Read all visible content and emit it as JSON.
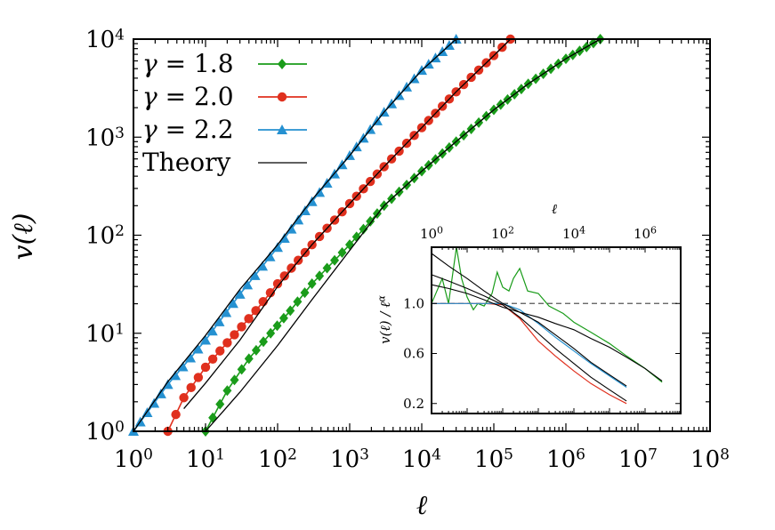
{
  "chart_data": [
    {
      "type": "line",
      "x_scale": "log",
      "y_scale": "log",
      "xlabel": "ℓ",
      "ylabel": "v(ℓ)",
      "xlim": [
        1,
        100000000
      ],
      "ylim": [
        1,
        10000
      ],
      "x_ticks": [
        {
          "base": "10",
          "exp": "0"
        },
        {
          "base": "10",
          "exp": "1"
        },
        {
          "base": "10",
          "exp": "2"
        },
        {
          "base": "10",
          "exp": "3"
        },
        {
          "base": "10",
          "exp": "4"
        },
        {
          "base": "10",
          "exp": "5"
        },
        {
          "base": "10",
          "exp": "6"
        },
        {
          "base": "10",
          "exp": "7"
        },
        {
          "base": "10",
          "exp": "8"
        }
      ],
      "y_ticks": [
        {
          "base": "10",
          "exp": "0"
        },
        {
          "base": "10",
          "exp": "1"
        },
        {
          "base": "10",
          "exp": "2"
        },
        {
          "base": "10",
          "exp": "3"
        },
        {
          "base": "10",
          "exp": "4"
        }
      ],
      "legend_position": "top-left",
      "series": [
        {
          "name": "γ = 1.8",
          "legend_symbol": "γ",
          "legend_rest": " = 1.8",
          "color": "#1a9c1a",
          "marker": "diamond",
          "x": [
            10,
            20,
            40,
            80,
            150,
            300,
            1000,
            3000,
            10000,
            30000,
            100000,
            300000,
            1000000,
            3000000
          ],
          "y": [
            1,
            2.6,
            5.5,
            10,
            17,
            32,
            80,
            200,
            450,
            900,
            1900,
            3500,
            6300,
            10000
          ]
        },
        {
          "name": "γ = 2.0",
          "legend_symbol": "γ",
          "legend_rest": " = 2.0",
          "color": "#e0301e",
          "marker": "circle",
          "x": [
            3,
            5,
            10,
            20,
            50,
            100,
            300,
            1000,
            3000,
            10000,
            30000,
            100000,
            170000
          ],
          "y": [
            1,
            2.2,
            4.5,
            8,
            17,
            32,
            80,
            210,
            500,
            1250,
            2900,
            6800,
            10000
          ]
        },
        {
          "name": "γ = 2.2",
          "legend_symbol": "γ",
          "legend_rest": " = 2.2",
          "color": "#2591d1",
          "marker": "triangle",
          "x": [
            1,
            3,
            10,
            30,
            100,
            300,
            1000,
            3000,
            10000,
            30000
          ],
          "y": [
            1,
            3,
            8.5,
            25,
            75,
            220,
            650,
            1800,
            4800,
            10000
          ]
        },
        {
          "name": "Theory",
          "legend_symbol": "",
          "legend_rest": "Theory",
          "color": "#000000",
          "marker": "none",
          "curves": [
            {
              "x": [
                1,
                3,
                10,
                30,
                100,
                300,
                1000,
                3000,
                10000,
                30000
              ],
              "y": [
                1,
                3.2,
                9.5,
                28,
                80,
                230,
                650,
                1800,
                4800,
                10000
              ]
            },
            {
              "x": [
                5,
                10,
                30,
                100,
                300,
                1000,
                3000,
                10000,
                30000,
                100000,
                170000
              ],
              "y": [
                1.7,
                3.1,
                8.5,
                30,
                80,
                210,
                500,
                1250,
                2900,
                6800,
                10000
              ]
            },
            {
              "x": [
                10,
                30,
                100,
                300,
                1000,
                3000,
                10000,
                30000,
                100000,
                300000,
                1000000,
                3000000
              ],
              "y": [
                1,
                2.5,
                7.5,
                22,
                70,
                200,
                450,
                900,
                1900,
                3500,
                6300,
                10000
              ]
            }
          ]
        }
      ]
    },
    {
      "type": "line",
      "x_scale": "log",
      "xlabel": "ℓ",
      "ylabel": "v(ℓ) / ℓ^α",
      "ylabel_main": "v(ℓ) / ℓ",
      "ylabel_sup": "α",
      "xlim": [
        1,
        10000000
      ],
      "ylim": [
        0.12,
        1.45
      ],
      "x_ticks": [
        {
          "base": "10",
          "exp": "0",
          "value": 1
        },
        {
          "base": "10",
          "exp": "2",
          "value": 100
        },
        {
          "base": "10",
          "exp": "4",
          "value": 10000
        },
        {
          "base": "10",
          "exp": "6",
          "value": 1000000
        }
      ],
      "y_ticks": [
        {
          "label": "0.2",
          "value": 0.2
        },
        {
          "label": "0.6",
          "value": 0.6
        },
        {
          "label": "1.0",
          "value": 1.0
        }
      ],
      "reference_line": {
        "y": 1.0,
        "style": "dashed"
      },
      "series": [
        {
          "name": "γ = 1.8",
          "color": "#1a9c1a",
          "x": [
            1,
            2,
            3,
            5,
            7,
            10,
            15,
            20,
            30,
            50,
            70,
            100,
            150,
            200,
            300,
            500,
            1000,
            2000,
            5000,
            10000,
            30000,
            100000,
            300000,
            1000000,
            3000000
          ],
          "y": [
            1.0,
            1.2,
            1.0,
            1.45,
            1.2,
            1.05,
            0.95,
            1.0,
            0.98,
            1.08,
            1.25,
            1.13,
            1.1,
            1.2,
            1.28,
            1.1,
            1.08,
            0.98,
            0.92,
            0.85,
            0.77,
            0.68,
            0.58,
            0.48,
            0.37
          ]
        },
        {
          "name": "γ = 2.0",
          "color": "#e0301e",
          "x": [
            1,
            3,
            10,
            30,
            100,
            300,
            1000,
            3000,
            10000,
            30000,
            100000,
            300000
          ],
          "y": [
            1.0,
            1.0,
            1.0,
            1.0,
            0.99,
            0.88,
            0.7,
            0.58,
            0.46,
            0.36,
            0.27,
            0.2
          ]
        },
        {
          "name": "γ = 2.2",
          "color": "#2591d1",
          "x": [
            1,
            3,
            10,
            30,
            100,
            300,
            1000,
            3000,
            10000,
            30000,
            100000,
            300000
          ],
          "y": [
            1.0,
            1.0,
            1.0,
            1.0,
            1.0,
            0.95,
            0.84,
            0.73,
            0.62,
            0.52,
            0.42,
            0.33
          ]
        },
        {
          "name": "Theory",
          "color": "#000000",
          "curves": [
            {
              "x": [
                1,
                3,
                10,
                30,
                100,
                300,
                1000,
                3000,
                10000,
                30000,
                100000,
                300000,
                1000000,
                3000000
              ],
              "y": [
                1.15,
                1.12,
                1.08,
                1.03,
                0.97,
                0.93,
                0.89,
                0.84,
                0.79,
                0.72,
                0.65,
                0.57,
                0.48,
                0.38
              ]
            },
            {
              "x": [
                1,
                3,
                10,
                30,
                100,
                300,
                1000,
                3000,
                10000,
                30000,
                100000,
                300000
              ],
              "y": [
                1.23,
                1.18,
                1.12,
                1.06,
                0.99,
                0.89,
                0.76,
                0.64,
                0.52,
                0.41,
                0.31,
                0.22
              ]
            },
            {
              "x": [
                1,
                3,
                10,
                30,
                100,
                300,
                1000,
                3000,
                10000,
                30000,
                100000,
                300000
              ],
              "y": [
                1.4,
                1.3,
                1.2,
                1.1,
                1.0,
                0.93,
                0.85,
                0.75,
                0.64,
                0.53,
                0.43,
                0.34
              ]
            }
          ]
        }
      ]
    }
  ]
}
